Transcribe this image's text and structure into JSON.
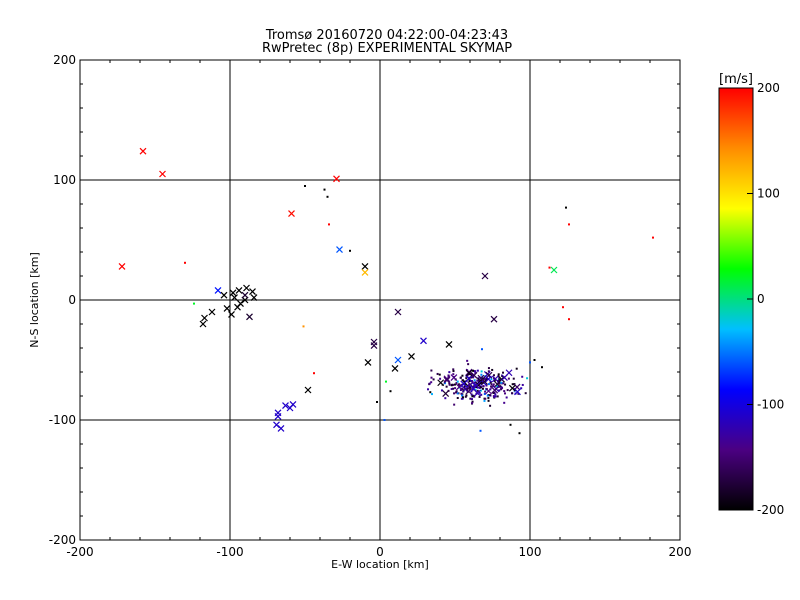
{
  "chart_data": {
    "type": "scatter",
    "title": "Tromsø 20160720 04:22:00-04:23:43",
    "subtitle": "RwPretec (8p) EXPERIMENTAL SKYMAP",
    "xlabel": "E-W location [km]",
    "ylabel": "N-S location [km]",
    "xlim": [
      -200,
      200
    ],
    "ylim": [
      -200,
      200
    ],
    "xticks": [
      -200,
      -100,
      0,
      100,
      200
    ],
    "yticks": [
      -200,
      -100,
      0,
      100,
      200
    ],
    "grid_lines_x": [
      -100,
      0,
      100
    ],
    "grid_lines_y": [
      -100,
      0,
      100
    ],
    "colorbar": {
      "label": "[m/s]",
      "min": -200,
      "max": 200,
      "ticks": [
        200,
        100,
        0,
        -100,
        -200
      ],
      "colors": [
        "#000000",
        "#4b0082",
        "#0000ff",
        "#00bfff",
        "#00ff00",
        "#ffff00",
        "#ff8c00",
        "#ff0000"
      ]
    },
    "crosses": [
      {
        "x": -158,
        "y": 124,
        "v": 200
      },
      {
        "x": -145,
        "y": 105,
        "v": 200
      },
      {
        "x": -172,
        "y": 28,
        "v": 200
      },
      {
        "x": -29,
        "y": 101,
        "v": 200
      },
      {
        "x": -59,
        "y": 72,
        "v": 195
      },
      {
        "x": -27,
        "y": 42,
        "v": -60
      },
      {
        "x": -10,
        "y": 28,
        "v": -200
      },
      {
        "x": -10,
        "y": 23,
        "v": 120
      },
      {
        "x": 116,
        "y": 25,
        "v": 10
      },
      {
        "x": 70,
        "y": 20,
        "v": -170
      },
      {
        "x": 76,
        "y": -16,
        "v": -170
      },
      {
        "x": 12,
        "y": -10,
        "v": -170
      },
      {
        "x": -108,
        "y": 8,
        "v": -80
      },
      {
        "x": -104,
        "y": 4,
        "v": -200
      },
      {
        "x": -98,
        "y": 6,
        "v": -200
      },
      {
        "x": -94,
        "y": 8,
        "v": -200
      },
      {
        "x": -89,
        "y": 10,
        "v": -200
      },
      {
        "x": -85,
        "y": 7,
        "v": -200
      },
      {
        "x": -84,
        "y": 2,
        "v": -200
      },
      {
        "x": -90,
        "y": 0,
        "v": -200
      },
      {
        "x": -93,
        "y": -3,
        "v": -200
      },
      {
        "x": -95,
        "y": -6,
        "v": -200
      },
      {
        "x": -102,
        "y": -7,
        "v": -200
      },
      {
        "x": -99,
        "y": -12,
        "v": -200
      },
      {
        "x": -112,
        "y": -10,
        "v": -200
      },
      {
        "x": -117,
        "y": -15,
        "v": -200
      },
      {
        "x": -118,
        "y": -20,
        "v": -200
      },
      {
        "x": -87,
        "y": -14,
        "v": -180
      },
      {
        "x": -90,
        "y": 4,
        "v": -180
      },
      {
        "x": -97,
        "y": 2,
        "v": -200
      },
      {
        "x": -4,
        "y": -35,
        "v": -170
      },
      {
        "x": -4,
        "y": -38,
        "v": -170
      },
      {
        "x": -8,
        "y": -52,
        "v": -200
      },
      {
        "x": 12,
        "y": -50,
        "v": -60
      },
      {
        "x": 10,
        "y": -57,
        "v": -200
      },
      {
        "x": 21,
        "y": -47,
        "v": -200
      },
      {
        "x": 29,
        "y": -34,
        "v": -110
      },
      {
        "x": 46,
        "y": -37,
        "v": -200
      },
      {
        "x": -48,
        "y": -75,
        "v": -200
      },
      {
        "x": -58,
        "y": -87,
        "v": -110
      },
      {
        "x": -60,
        "y": -90,
        "v": -110
      },
      {
        "x": -63,
        "y": -88,
        "v": -110
      },
      {
        "x": -68,
        "y": -94,
        "v": -110
      },
      {
        "x": -68,
        "y": -97,
        "v": -110
      },
      {
        "x": -69,
        "y": -104,
        "v": -110
      },
      {
        "x": -66,
        "y": -107,
        "v": -110
      }
    ],
    "dots": [
      {
        "x": -50,
        "y": 95,
        "v": -200
      },
      {
        "x": -37,
        "y": 92,
        "v": -200
      },
      {
        "x": -35,
        "y": 86,
        "v": -200
      },
      {
        "x": -34,
        "y": 63,
        "v": 200
      },
      {
        "x": -20,
        "y": 41,
        "v": -200
      },
      {
        "x": -130,
        "y": 31,
        "v": 200
      },
      {
        "x": -124,
        "y": -3,
        "v": 20
      },
      {
        "x": -51,
        "y": -22,
        "v": 140
      },
      {
        "x": -44,
        "y": -61,
        "v": 200
      },
      {
        "x": 124,
        "y": 77,
        "v": -200
      },
      {
        "x": 126,
        "y": 63,
        "v": 200
      },
      {
        "x": 182,
        "y": 52,
        "v": 200
      },
      {
        "x": 113,
        "y": 27,
        "v": 200
      },
      {
        "x": 122,
        "y": -6,
        "v": 200
      },
      {
        "x": 126,
        "y": -16,
        "v": 200
      },
      {
        "x": -2,
        "y": -85,
        "v": -200
      },
      {
        "x": 3,
        "y": -100,
        "v": -60
      },
      {
        "x": 4,
        "y": -68,
        "v": 20
      },
      {
        "x": 7,
        "y": -76,
        "v": -200
      },
      {
        "x": 67,
        "y": -109,
        "v": -60
      },
      {
        "x": 93,
        "y": -111,
        "v": -200
      },
      {
        "x": 87,
        "y": -104,
        "v": -200
      },
      {
        "x": 68,
        "y": -41,
        "v": -60
      },
      {
        "x": 103,
        "y": -50,
        "v": -200
      },
      {
        "x": 108,
        "y": -56,
        "v": -200
      },
      {
        "x": 100,
        "y": -52,
        "v": -60
      }
    ],
    "dense_cluster": {
      "center_x": 65,
      "center_y": -71,
      "spread_x": 28,
      "spread_y": 14,
      "count": 230,
      "velocity_range": [
        -200,
        -120
      ]
    }
  }
}
